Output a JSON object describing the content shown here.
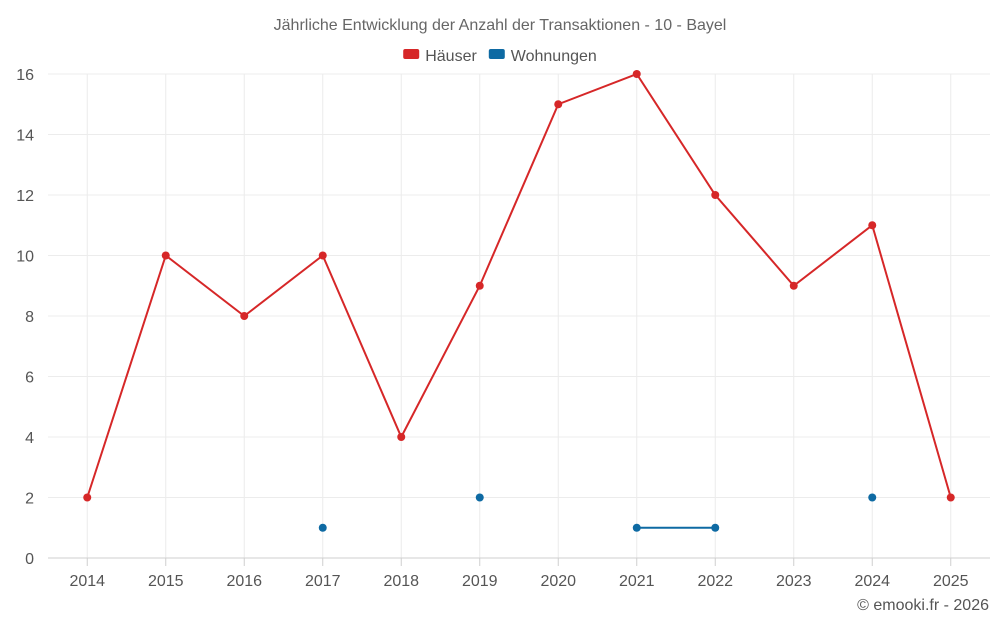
{
  "chart_data": {
    "type": "line",
    "title": "Jährliche Entwicklung der Anzahl der Transaktionen - 10 - Bayel",
    "categories": [
      "2014",
      "2015",
      "2016",
      "2017",
      "2018",
      "2019",
      "2020",
      "2021",
      "2022",
      "2023",
      "2024",
      "2025"
    ],
    "series": [
      {
        "name": "Häuser",
        "color": "#d62728",
        "values": [
          2,
          10,
          8,
          10,
          4,
          9,
          15,
          16,
          12,
          9,
          11,
          2
        ]
      },
      {
        "name": "Wohnungen",
        "color": "#0e6aa3",
        "values": [
          null,
          null,
          null,
          1,
          null,
          2,
          null,
          1,
          1,
          null,
          2,
          null
        ]
      }
    ],
    "ylim": [
      0,
      16
    ],
    "yticks": [
      0,
      2,
      4,
      6,
      8,
      10,
      12,
      14,
      16
    ],
    "xlabel": "",
    "ylabel": "",
    "grid": true,
    "legend": "top-center"
  },
  "credit": "© emooki.fr - 2026"
}
